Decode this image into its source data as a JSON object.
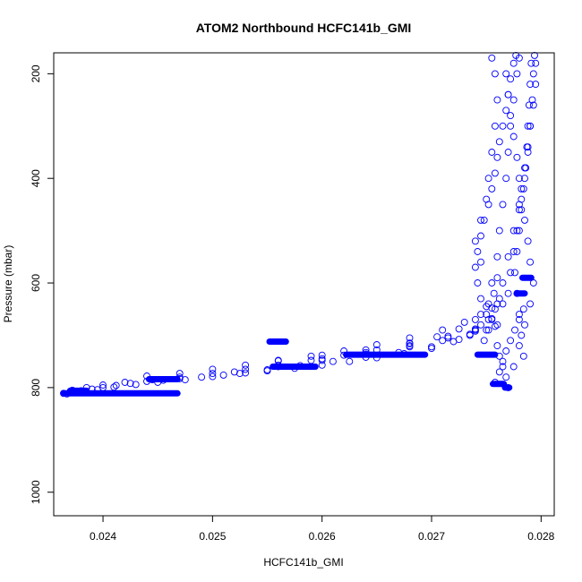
{
  "chart_data": {
    "type": "scatter",
    "title": "ATOM2 Northbound HCFC141b_GMI",
    "xlabel": "HCFC141b_GMI",
    "ylabel": "Pressure (mbar)",
    "xlim": [
      0.02355,
      0.02812
    ],
    "ylim": [
      1045,
      160
    ],
    "y_inverted": true,
    "grid": false,
    "marker": "open-circle",
    "x_ticks": [
      0.024,
      0.025,
      0.026,
      0.027,
      0.028
    ],
    "x_tick_labels": [
      "0.024",
      "0.025",
      "0.026",
      "0.027",
      "0.028"
    ],
    "y_ticks": [
      200,
      400,
      600,
      800,
      1000
    ],
    "y_tick_labels": [
      "200",
      "400",
      "600",
      "800",
      "1000"
    ],
    "series": [
      {
        "color": "#0000ff",
        "points": [
          [
            0.02364,
            811
          ],
          [
            0.0237,
            810
          ],
          [
            0.02374,
            808
          ],
          [
            0.0238,
            806
          ],
          [
            0.0239,
            803
          ],
          [
            0.024,
            800
          ],
          [
            0.02412,
            796
          ],
          [
            0.02425,
            792
          ],
          [
            0.0244,
            788
          ],
          [
            0.02455,
            786
          ],
          [
            0.0247,
            783
          ],
          [
            0.0249,
            780
          ],
          [
            0.0251,
            776
          ],
          [
            0.0253,
            772
          ],
          [
            0.0255,
            768
          ],
          [
            0.02575,
            763
          ],
          [
            0.026,
            757
          ],
          [
            0.02625,
            750
          ],
          [
            0.0265,
            743
          ],
          [
            0.02675,
            735
          ],
          [
            0.027,
            725
          ],
          [
            0.0272,
            712
          ],
          [
            0.02735,
            698
          ],
          [
            0.02745,
            680
          ],
          [
            0.0275,
            660
          ],
          [
            0.02752,
            640
          ],
          [
            0.02755,
            600
          ],
          [
            0.0276,
            550
          ],
          [
            0.02762,
            500
          ],
          [
            0.02765,
            450
          ],
          [
            0.02768,
            400
          ],
          [
            0.0277,
            350
          ],
          [
            0.02772,
            300
          ],
          [
            0.02775,
            250
          ],
          [
            0.02778,
            200
          ],
          [
            0.0278,
            170
          ],
          [
            0.02367,
            812
          ],
          [
            0.0238,
            809
          ],
          [
            0.02395,
            804
          ],
          [
            0.0241,
            799
          ],
          [
            0.0243,
            794
          ],
          [
            0.0245,
            790
          ],
          [
            0.02475,
            785
          ],
          [
            0.025,
            779
          ],
          [
            0.02525,
            773
          ],
          [
            0.0255,
            766
          ],
          [
            0.0258,
            758
          ],
          [
            0.0261,
            750
          ],
          [
            0.0264,
            742
          ],
          [
            0.0267,
            733
          ],
          [
            0.027,
            722
          ],
          [
            0.02725,
            708
          ],
          [
            0.0274,
            690
          ],
          [
            0.02752,
            670
          ],
          [
            0.0276,
            640
          ],
          [
            0.02765,
            600
          ],
          [
            0.0277,
            550
          ],
          [
            0.02775,
            500
          ],
          [
            0.0278,
            450
          ],
          [
            0.02785,
            400
          ],
          [
            0.02788,
            350
          ],
          [
            0.0279,
            300
          ],
          [
            0.02792,
            250
          ],
          [
            0.02793,
            200
          ],
          [
            0.02794,
            165
          ],
          [
            0.02372,
            805
          ],
          [
            0.02385,
            800
          ],
          [
            0.024,
            795
          ],
          [
            0.0242,
            790
          ],
          [
            0.02445,
            785
          ],
          [
            0.0247,
            780
          ],
          [
            0.025,
            773
          ],
          [
            0.0253,
            765
          ],
          [
            0.0256,
            757
          ],
          [
            0.0259,
            748
          ],
          [
            0.0262,
            738
          ],
          [
            0.0265,
            728
          ],
          [
            0.0268,
            716
          ],
          [
            0.02705,
            703
          ],
          [
            0.02725,
            688
          ],
          [
            0.0274,
            670
          ],
          [
            0.0275,
            645
          ],
          [
            0.02757,
            620
          ],
          [
            0.0276,
            590
          ],
          [
            0.02745,
            560
          ],
          [
            0.0274,
            520
          ],
          [
            0.02745,
            480
          ],
          [
            0.0275,
            440
          ],
          [
            0.02752,
            400
          ],
          [
            0.02755,
            350
          ],
          [
            0.02758,
            300
          ],
          [
            0.0276,
            250
          ],
          [
            0.02758,
            200
          ],
          [
            0.02755,
            170
          ],
          [
            0.0244,
            778
          ],
          [
            0.0247,
            773
          ],
          [
            0.025,
            765
          ],
          [
            0.0253,
            757
          ],
          [
            0.0256,
            749
          ],
          [
            0.0259,
            740
          ],
          [
            0.0262,
            730
          ],
          [
            0.0265,
            718
          ],
          [
            0.0268,
            705
          ],
          [
            0.0271,
            690
          ],
          [
            0.0273,
            675
          ],
          [
            0.02745,
            660
          ],
          [
            0.02755,
            648
          ],
          [
            0.0252,
            770
          ],
          [
            0.0256,
            760
          ],
          [
            0.026,
            748
          ],
          [
            0.0264,
            736
          ],
          [
            0.0268,
            722
          ],
          [
            0.0271,
            710
          ],
          [
            0.02735,
            700
          ],
          [
            0.0275,
            690
          ],
          [
            0.0276,
            680
          ],
          [
            0.0256,
            748
          ],
          [
            0.026,
            738
          ],
          [
            0.0264,
            728
          ],
          [
            0.0268,
            715
          ],
          [
            0.02715,
            702
          ],
          [
            0.0274,
            692
          ],
          [
            0.02758,
            683
          ],
          [
            0.026,
            745
          ],
          [
            0.0264,
            733
          ],
          [
            0.0268,
            720
          ],
          [
            0.02715,
            705
          ],
          [
            0.0274,
            688
          ],
          [
            0.02755,
            668
          ],
          [
            0.02765,
            640
          ],
          [
            0.0277,
            620
          ],
          [
            0.02772,
            580
          ],
          [
            0.02775,
            540
          ],
          [
            0.02778,
            500
          ],
          [
            0.0278,
            460
          ],
          [
            0.02782,
            420
          ],
          [
            0.02785,
            380
          ],
          [
            0.02787,
            340
          ],
          [
            0.02788,
            300
          ],
          [
            0.02789,
            260
          ],
          [
            0.0279,
            220
          ],
          [
            0.02791,
            180
          ],
          [
            0.0276,
            720
          ],
          [
            0.02762,
            740
          ],
          [
            0.02765,
            760
          ],
          [
            0.02768,
            780
          ],
          [
            0.0277,
            800
          ],
          [
            0.02775,
            760
          ],
          [
            0.0278,
            720
          ],
          [
            0.02785,
            680
          ],
          [
            0.0279,
            640
          ],
          [
            0.02793,
            600
          ],
          [
            0.0279,
            560
          ],
          [
            0.02788,
            520
          ],
          [
            0.02785,
            480
          ],
          [
            0.02782,
            440
          ],
          [
            0.0278,
            400
          ],
          [
            0.02778,
            360
          ],
          [
            0.02775,
            320
          ],
          [
            0.02772,
            280
          ],
          [
            0.0277,
            240
          ],
          [
            0.02768,
            200
          ],
          [
            0.02758,
            790
          ],
          [
            0.02762,
            770
          ],
          [
            0.02765,
            750
          ],
          [
            0.02768,
            730
          ],
          [
            0.02772,
            710
          ],
          [
            0.02776,
            690
          ],
          [
            0.0278,
            670
          ],
          [
            0.02784,
            650
          ],
          [
            0.02748,
            710
          ],
          [
            0.02752,
            690
          ],
          [
            0.02755,
            670
          ],
          [
            0.02758,
            650
          ],
          [
            0.02762,
            630
          ],
          [
            0.02745,
            630
          ],
          [
            0.02742,
            600
          ],
          [
            0.0274,
            570
          ],
          [
            0.02742,
            540
          ],
          [
            0.02745,
            510
          ],
          [
            0.02748,
            480
          ],
          [
            0.02752,
            450
          ],
          [
            0.02755,
            420
          ],
          [
            0.02758,
            390
          ],
          [
            0.0276,
            360
          ],
          [
            0.02762,
            330
          ],
          [
            0.02765,
            300
          ],
          [
            0.02768,
            270
          ],
          [
            0.0277,
            240
          ],
          [
            0.02772,
            210
          ],
          [
            0.02775,
            180
          ],
          [
            0.02777,
            165
          ],
          [
            0.02795,
            180
          ],
          [
            0.02795,
            220
          ],
          [
            0.02793,
            260
          ],
          [
            0.0279,
            300
          ],
          [
            0.02788,
            340
          ],
          [
            0.02786,
            380
          ],
          [
            0.02784,
            420
          ],
          [
            0.02782,
            460
          ],
          [
            0.0278,
            500
          ],
          [
            0.02778,
            540
          ],
          [
            0.02776,
            580
          ],
          [
            0.02778,
            620
          ],
          [
            0.0278,
            660
          ],
          [
            0.02782,
            700
          ],
          [
            0.02784,
            740
          ]
        ]
      }
    ],
    "segments": [
      {
        "x": [
          0.02364,
          0.02468
        ],
        "y": 811
      },
      {
        "x": [
          0.0237,
          0.02385
        ],
        "y": 806
      },
      {
        "x": [
          0.02442,
          0.02468
        ],
        "y": 784
      },
      {
        "x": [
          0.02552,
          0.02567
        ],
        "y": 712
      },
      {
        "x": [
          0.02555,
          0.02594
        ],
        "y": 760
      },
      {
        "x": [
          0.02622,
          0.02694
        ],
        "y": 737
      },
      {
        "x": [
          0.02742,
          0.02758
        ],
        "y": 737
      },
      {
        "x": [
          0.02756,
          0.02766
        ],
        "y": 793
      },
      {
        "x": [
          0.02767,
          0.02771
        ],
        "y": 800
      },
      {
        "x": [
          0.02783,
          0.02791
        ],
        "y": 590
      },
      {
        "x": [
          0.02778,
          0.02785
        ],
        "y": 620
      }
    ]
  }
}
